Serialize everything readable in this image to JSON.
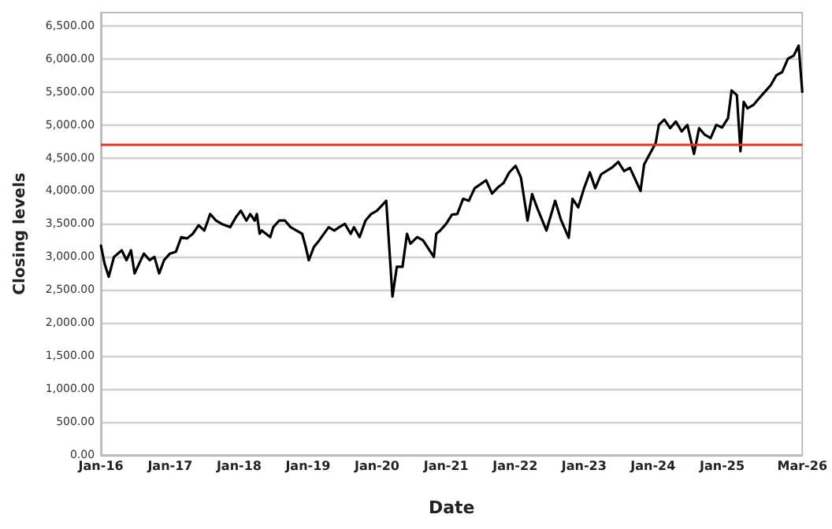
{
  "chart_data": {
    "type": "line",
    "xlabel": "Date",
    "ylabel": "Closing levels",
    "x": [
      "2016-01-01",
      "2016-01-20",
      "2016-02-11",
      "2016-03-10",
      "2016-04-20",
      "2016-05-15",
      "2016-06-08",
      "2016-06-27",
      "2016-08-15",
      "2016-09-15",
      "2016-10-10",
      "2016-11-04",
      "2016-11-30",
      "2016-12-31",
      "2017-02-01",
      "2017-03-01",
      "2017-04-01",
      "2017-05-01",
      "2017-06-01",
      "2017-07-01",
      "2017-07-20",
      "2017-08-01",
      "2017-09-01",
      "2017-10-01",
      "2017-11-15",
      "2017-12-15",
      "2018-01-10",
      "2018-02-09",
      "2018-03-01",
      "2018-03-25",
      "2018-04-05",
      "2018-04-20",
      "2018-05-01",
      "2018-06-15",
      "2018-07-01",
      "2018-08-01",
      "2018-09-01",
      "2018-10-01",
      "2018-11-01",
      "2018-12-01",
      "2018-12-20",
      "2019-01-01",
      "2019-01-05",
      "2019-02-01",
      "2019-03-01",
      "2019-04-20",
      "2019-05-20",
      "2019-06-15",
      "2019-07-15",
      "2019-08-15",
      "2019-09-01",
      "2019-10-01",
      "2019-11-01",
      "2019-12-01",
      "2020-01-01",
      "2020-02-19",
      "2020-03-23",
      "2020-04-15",
      "2020-05-15",
      "2020-06-08",
      "2020-06-26",
      "2020-08-01",
      "2020-09-01",
      "2020-10-28",
      "2020-11-10",
      "2020-12-01",
      "2021-01-01",
      "2021-02-01",
      "2021-03-01",
      "2021-04-01",
      "2021-05-01",
      "2021-06-01",
      "2021-08-01",
      "2021-09-01",
      "2021-10-01",
      "2021-11-01",
      "2021-12-01",
      "2022-01-04",
      "2022-02-01",
      "2022-03-08",
      "2022-04-01",
      "2022-05-01",
      "2022-06-16",
      "2022-08-01",
      "2022-09-01",
      "2022-10-12",
      "2022-11-01",
      "2022-12-01",
      "2023-01-01",
      "2023-02-01",
      "2023-03-01",
      "2023-04-01",
      "2023-06-01",
      "2023-07-01",
      "2023-08-01",
      "2023-09-01",
      "2023-10-27",
      "2023-11-15",
      "2023-12-15",
      "2024-01-15",
      "2024-02-01",
      "2024-03-01",
      "2024-04-01",
      "2024-05-01",
      "2024-06-01",
      "2024-07-01",
      "2024-08-05",
      "2024-09-01",
      "2024-10-01",
      "2024-11-01",
      "2024-12-01",
      "2025-01-01",
      "2025-02-01",
      "2025-02-20",
      "2025-03-20",
      "2025-04-08",
      "2025-04-25",
      "2025-05-15",
      "2025-06-15",
      "2025-07-15",
      "2025-08-15",
      "2025-09-15",
      "2025-10-15",
      "2025-11-15",
      "2025-12-15",
      "2026-01-15",
      "2026-02-10",
      "2026-03-01"
    ],
    "series": [
      {
        "color": "#000000",
        "values": [
          3170,
          2900,
          2700,
          3000,
          3100,
          2950,
          3100,
          2750,
          3050,
          2950,
          3000,
          2750,
          2950,
          3050,
          3080,
          3300,
          3280,
          3350,
          3480,
          3400,
          3550,
          3650,
          3550,
          3500,
          3450,
          3600,
          3700,
          3550,
          3650,
          3550,
          3650,
          3350,
          3400,
          3300,
          3450,
          3550,
          3550,
          3450,
          3400,
          3350,
          3150,
          3000,
          2950,
          3150,
          3250,
          3450,
          3400,
          3450,
          3500,
          3350,
          3450,
          3300,
          3550,
          3650,
          3700,
          3850,
          2400,
          2850,
          2850,
          3350,
          3200,
          3300,
          3250,
          3000,
          3350,
          3400,
          3500,
          3640,
          3650,
          3880,
          3850,
          4040,
          4160,
          3960,
          4050,
          4120,
          4280,
          4380,
          4200,
          3550,
          3950,
          3720,
          3400,
          3850,
          3560,
          3290,
          3880,
          3750,
          4040,
          4280,
          4040,
          4250,
          4360,
          4440,
          4300,
          4350,
          4000,
          4400,
          4560,
          4720,
          5000,
          5080,
          4950,
          5050,
          4900,
          5000,
          4560,
          4950,
          4850,
          4800,
          5000,
          4960,
          5100,
          5520,
          5450,
          4600,
          5350,
          5250,
          5300,
          5400,
          5500,
          5600,
          5750,
          5800,
          6000,
          6050,
          6200,
          5500
        ]
      }
    ],
    "xlim": [
      "2016-01-01",
      "2026-03-01"
    ],
    "xticks": [
      {
        "value": "2016-01-01",
        "label": "Jan-16"
      },
      {
        "value": "2017-01-01",
        "label": "Jan-17"
      },
      {
        "value": "2018-01-01",
        "label": "Jan-18"
      },
      {
        "value": "2019-01-01",
        "label": "Jan-19"
      },
      {
        "value": "2020-01-01",
        "label": "Jan-20"
      },
      {
        "value": "2021-01-01",
        "label": "Jan-21"
      },
      {
        "value": "2022-01-01",
        "label": "Jan-22"
      },
      {
        "value": "2023-01-01",
        "label": "Jan-23"
      },
      {
        "value": "2024-01-01",
        "label": "Jan-24"
      },
      {
        "value": "2025-01-01",
        "label": "Jan-25"
      },
      {
        "value": "2026-03-01",
        "label": "Mar-26"
      }
    ],
    "ylim": [
      0,
      6700
    ],
    "yticks": [
      {
        "value": 0,
        "label": "0.00"
      },
      {
        "value": 500,
        "label": "500.00"
      },
      {
        "value": 1000,
        "label": "1,000.00"
      },
      {
        "value": 1500,
        "label": "1,500.00"
      },
      {
        "value": 2000,
        "label": "2,000.00"
      },
      {
        "value": 2500,
        "label": "2,500.00"
      },
      {
        "value": 3000,
        "label": "3,000.00"
      },
      {
        "value": 3500,
        "label": "3,500.00"
      },
      {
        "value": 4000,
        "label": "4,000.00"
      },
      {
        "value": 4500,
        "label": "4,500.00"
      },
      {
        "value": 5000,
        "label": "5,000.00"
      },
      {
        "value": 5500,
        "label": "5,500.00"
      },
      {
        "value": 6000,
        "label": "6,000.00"
      },
      {
        "value": 6500,
        "label": "6,500.00"
      }
    ],
    "ref_lines": [
      {
        "axis": "y",
        "value": 4700,
        "color": "#e8321e"
      }
    ],
    "grid": "y",
    "marker": "none",
    "line_style": "solid"
  }
}
